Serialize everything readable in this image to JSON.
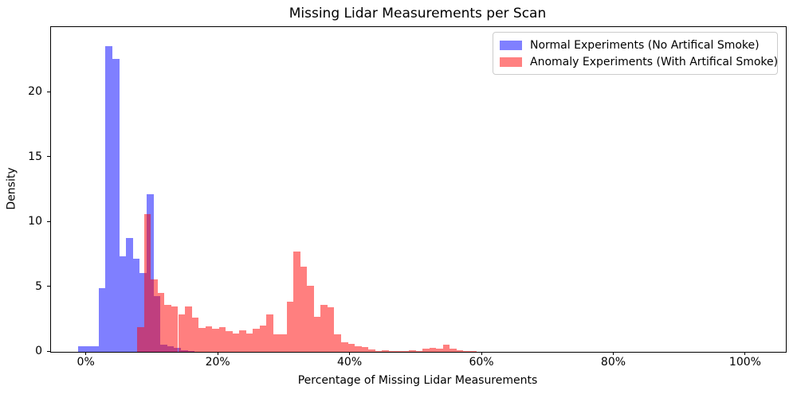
{
  "chart_data": {
    "type": "bar",
    "subtype": "overlapping-density-histogram",
    "title": "Missing Lidar Measurements per Scan",
    "xlabel": "Percentage of Missing Lidar Measurements",
    "ylabel": "Density",
    "x_tick_labels": [
      "0%",
      "20%",
      "40%",
      "60%",
      "80%",
      "100%"
    ],
    "x_tick_values": [
      0,
      20,
      40,
      60,
      80,
      100
    ],
    "y_tick_labels": [
      "0",
      "5",
      "10",
      "15",
      "20"
    ],
    "y_tick_values": [
      0,
      5,
      10,
      15,
      20
    ],
    "xlim": [
      -5.4,
      106.05
    ],
    "ylim": [
      0,
      25.06
    ],
    "grid": false,
    "legend_position": "upper right",
    "bar_alpha": 0.5,
    "overlap_color": "#bf4080",
    "background_color": "#ffffff",
    "series": [
      {
        "name": "Normal Experiments (No Artifical Smoke)",
        "color": "rgba(0,0,255,0.5)",
        "swatch_color": "#8080ff",
        "bin_start_pct": -1.29,
        "bin_width_pct": 1.0395,
        "densities": [
          0.45,
          0.45,
          0.42,
          4.9,
          23.6,
          22.6,
          7.35,
          8.8,
          7.2,
          6.08,
          12.15,
          4.3,
          0.55,
          0.45,
          0.3,
          0.15,
          0.08
        ]
      },
      {
        "name": "Anomaly Experiments (With Artifical Smoke)",
        "color": "rgba(255,0,0,0.5)",
        "swatch_color": "#ff8080",
        "bin_start_pct": 7.7,
        "bin_width_pct": 1.03,
        "densities": [
          1.9,
          10.6,
          5.57,
          4.55,
          3.62,
          3.48,
          2.91,
          3.48,
          2.66,
          1.84,
          1.99,
          1.78,
          1.93,
          1.58,
          1.44,
          1.64,
          1.44,
          1.78,
          2.05,
          2.91,
          1.35,
          1.38,
          3.86,
          7.75,
          6.6,
          5.12,
          2.7,
          3.62,
          3.42,
          1.38,
          0.76,
          0.6,
          0.45,
          0.39,
          0.18,
          0.08,
          0.14,
          0.04,
          0.03,
          0.05,
          0.14,
          0.06,
          0.24,
          0.3,
          0.24,
          0.55,
          0.24,
          0.12,
          0.08,
          0.05
        ]
      }
    ]
  }
}
